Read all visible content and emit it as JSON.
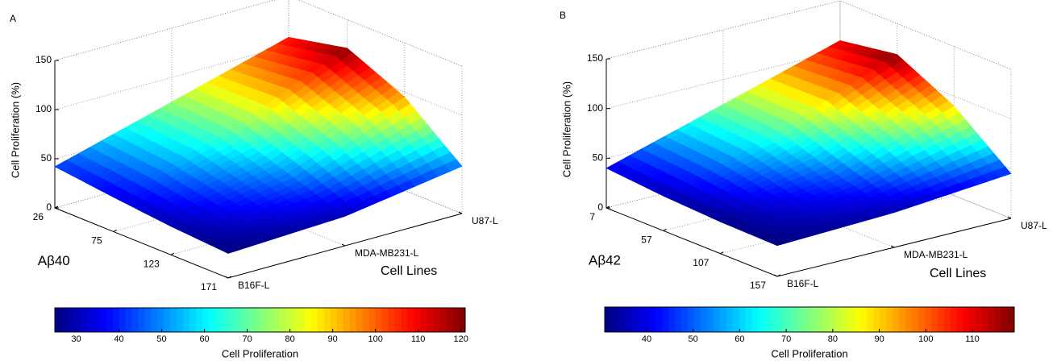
{
  "chart_data": [
    {
      "type": "surface",
      "panel_label": "A",
      "z_label": "Cell Proliferation (%)",
      "x_label": "Aβ40",
      "y_label": "Cell Lines",
      "x": [
        26,
        75,
        123,
        171
      ],
      "xlim": [
        26,
        171
      ],
      "xticks": [
        26,
        75,
        123,
        171
      ],
      "categories": [
        "B16F-L",
        "MDA-MB231-L",
        "U87-L"
      ],
      "values": [
        [
          42,
          35,
          29,
          25
        ],
        [
          75,
          70,
          50,
          30
        ],
        [
          108,
          121,
          95,
          48
        ]
      ],
      "zlim": [
        0,
        150
      ],
      "zticks": [
        0,
        50,
        100,
        150
      ],
      "grid": true,
      "colorbar": {
        "label": "Cell Proliferation",
        "colormap": "jet",
        "lim": [
          25,
          121
        ],
        "ticks": [
          30,
          40,
          50,
          60,
          70,
          80,
          90,
          100,
          110,
          120
        ]
      }
    },
    {
      "type": "surface",
      "panel_label": "B",
      "z_label": "Cell Proliferation (%)",
      "x_label": "Aβ42",
      "y_label": "Cell Lines",
      "x": [
        7,
        57,
        107,
        157
      ],
      "xlim": [
        7,
        157
      ],
      "xticks": [
        7,
        57,
        107,
        157
      ],
      "categories": [
        "B16F-L",
        "MDA-MB231-L",
        "U87-L"
      ],
      "values": [
        [
          40,
          35,
          32,
          31
        ],
        [
          75,
          70,
          50,
          35
        ],
        [
          110,
          119,
          90,
          45
        ]
      ],
      "zlim": [
        0,
        150
      ],
      "zticks": [
        0,
        50,
        100,
        150
      ],
      "grid": true,
      "colorbar": {
        "label": "Cell Proliferation",
        "colormap": "jet",
        "lim": [
          31,
          119
        ],
        "ticks": [
          40,
          50,
          60,
          70,
          80,
          90,
          100,
          110
        ]
      }
    }
  ]
}
